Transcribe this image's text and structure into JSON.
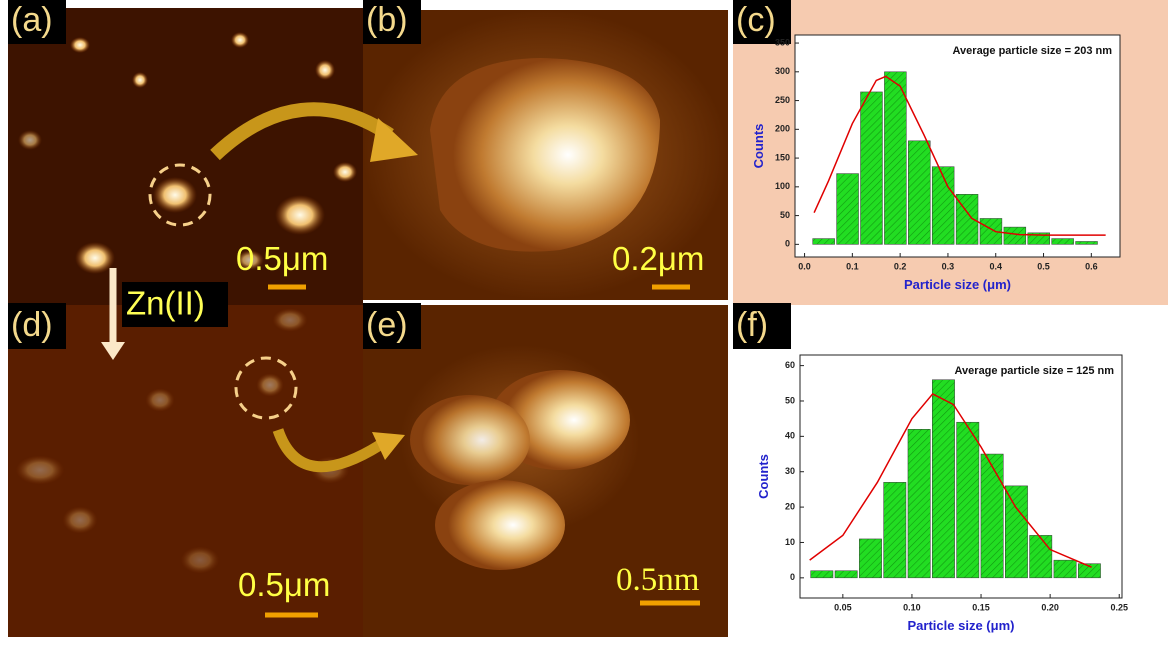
{
  "chart_data": [
    {
      "type": "histogram",
      "annotation": "Average particle size = 203 nm",
      "xlabel": "Particle size (μm)",
      "ylabel": "Counts",
      "bins": [
        0.015,
        0.065,
        0.115,
        0.165,
        0.215,
        0.265,
        0.315,
        0.365,
        0.415,
        0.465,
        0.515,
        0.565,
        0.615,
        0.665
      ],
      "values": [
        10,
        123,
        265,
        300,
        180,
        135,
        87,
        45,
        30,
        20,
        10,
        5,
        0
      ],
      "color": "#22dd22",
      "fit": {
        "x": [
          0.02,
          0.05,
          0.1,
          0.15,
          0.17,
          0.2,
          0.25,
          0.3,
          0.35,
          0.4,
          0.45,
          0.5,
          0.6,
          0.63
        ],
        "values": [
          55,
          110,
          210,
          285,
          292,
          275,
          190,
          100,
          45,
          22,
          17,
          16,
          16,
          16
        ],
        "color": "#e00000"
      },
      "xlim": [
        -0.02,
        0.66
      ],
      "ylim": [
        -22,
        364
      ],
      "xticks": [
        {
          "value": 0,
          "label": "0.0"
        },
        0.1,
        0.2,
        0.3,
        0.4,
        0.5,
        0.6
      ],
      "yticks": [
        0,
        50,
        100,
        150,
        200,
        250,
        300,
        350
      ]
    },
    {
      "type": "histogram",
      "annotation": "Average particle size = 125 nm",
      "xlabel": "Particle size (μm)",
      "ylabel": "Counts",
      "bins": [
        0.026,
        0.0436,
        0.0612,
        0.0788,
        0.0964,
        0.114,
        0.1316,
        0.1492,
        0.1668,
        0.1844,
        0.202,
        0.2196,
        0.2372
      ],
      "values": [
        2,
        2,
        11,
        27,
        42,
        56,
        44,
        35,
        26,
        12,
        5,
        4
      ],
      "color": "#22dd22",
      "fit": {
        "x": [
          0.026,
          0.05,
          0.075,
          0.1,
          0.115,
          0.13,
          0.15,
          0.175,
          0.2,
          0.23
        ],
        "values": [
          5,
          12,
          27,
          45,
          52,
          49,
          37,
          20,
          8,
          3
        ],
        "color": "#e00000"
      },
      "xlim": [
        0.019,
        0.252
      ],
      "ylim": [
        -5.7,
        63
      ],
      "xticks": [
        0.05,
        {
          "value": 0.1,
          "label": "0.10"
        },
        0.15,
        {
          "value": 0.2,
          "label": "0.20"
        },
        0.25
      ],
      "yticks": [
        0,
        10,
        20,
        30,
        40,
        50,
        60
      ]
    }
  ],
  "panels": {
    "labels": [
      "(a)",
      "(b)",
      "(c)",
      "(d)",
      "(e)",
      "(f)"
    ],
    "scale_bars": [
      "0.5μm",
      "0.2μm",
      "0.5μm",
      "0.5nm"
    ],
    "arrow_label": "Zn(II)"
  }
}
